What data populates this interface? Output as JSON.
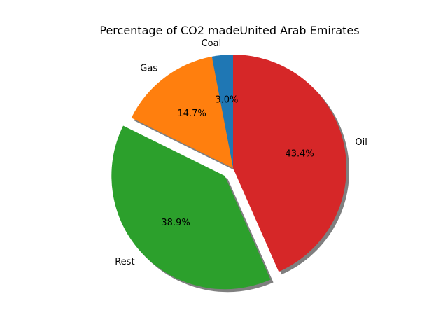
{
  "chart_data": {
    "type": "pie",
    "title": "Percentage of CO2 madeUnited Arab Emirates",
    "start_angle_deg": 90,
    "direction": "counterclockwise",
    "shadow": true,
    "slices": [
      {
        "label": "Coal",
        "value": 3.0,
        "pct_text": "3.0%",
        "color": "#1f77b4",
        "exploded": false
      },
      {
        "label": "Gas",
        "value": 14.7,
        "pct_text": "14.7%",
        "color": "#ff7f0e",
        "exploded": false
      },
      {
        "label": "Rest",
        "value": 38.9,
        "pct_text": "38.9%",
        "color": "#2ca02c",
        "exploded": true
      },
      {
        "label": "Oil",
        "value": 43.4,
        "pct_text": "43.4%",
        "color": "#d62728",
        "exploded": false
      }
    ]
  }
}
